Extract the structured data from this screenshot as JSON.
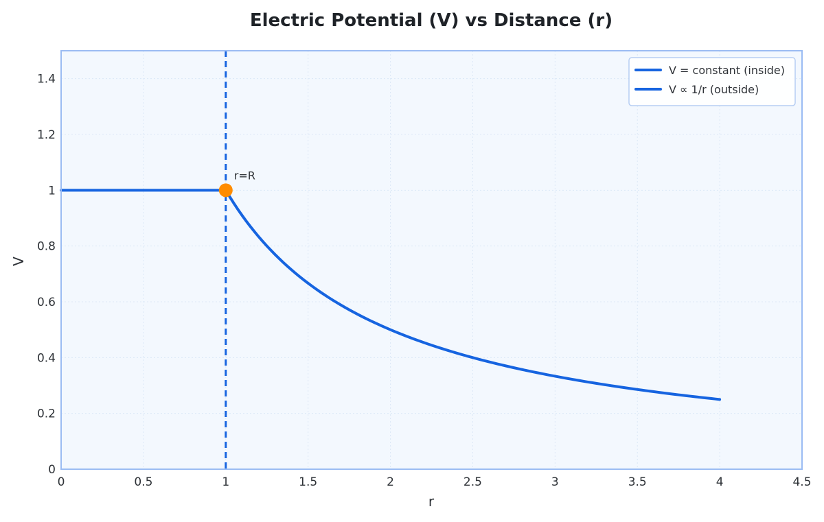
{
  "chart_data": {
    "type": "line",
    "title": "Electric Potential (V) vs Distance (r)",
    "xlabel": "r",
    "ylabel": "V",
    "xlim": [
      0,
      4.5
    ],
    "ylim": [
      0,
      1.5
    ],
    "x_ticks": [
      0,
      0.5,
      1,
      1.5,
      2,
      2.5,
      3,
      3.5,
      4,
      4.5
    ],
    "x_tick_labels": [
      "0",
      "0.5",
      "1",
      "1.5",
      "2",
      "2.5",
      "3",
      "3.5",
      "4",
      "4.5"
    ],
    "y_ticks": [
      0,
      0.2,
      0.4,
      0.6,
      0.8,
      1,
      1.2,
      1.4
    ],
    "y_tick_labels": [
      "0",
      "0.2",
      "0.4",
      "0.6",
      "0.8",
      "1",
      "1.2",
      "1.4"
    ],
    "grid": true,
    "legend_position": "top-right",
    "series": [
      {
        "name": "V = constant (inside)",
        "color": "#1664e0",
        "x": [
          0,
          0.25,
          0.5,
          0.75,
          1
        ],
        "y": [
          1,
          1,
          1,
          1,
          1
        ]
      },
      {
        "name": "V ∝ 1/r (outside)",
        "color": "#1664e0",
        "x": [
          1,
          1.1,
          1.2,
          1.3,
          1.4,
          1.5,
          1.6,
          1.7,
          1.8,
          1.9,
          2,
          2.2,
          2.4,
          2.6,
          2.8,
          3,
          3.2,
          3.4,
          3.6,
          3.8,
          4
        ],
        "y": [
          1,
          0.909,
          0.833,
          0.769,
          0.714,
          0.667,
          0.625,
          0.588,
          0.556,
          0.526,
          0.5,
          0.455,
          0.417,
          0.385,
          0.357,
          0.333,
          0.313,
          0.294,
          0.278,
          0.263,
          0.25
        ]
      }
    ],
    "vertical_line": {
      "x": 1,
      "color": "#1664e0",
      "style": "dashed"
    },
    "marker": {
      "x": 1,
      "y": 1,
      "color": "#ff8c00"
    },
    "annotation": {
      "text": "r=R",
      "x": 1,
      "y": 1
    }
  },
  "style": {
    "plot_background": "#f3f8fe",
    "plot_border": "#9bbcf3",
    "grid_color": "#dce8f7",
    "legend_border": "#b6cef3"
  }
}
